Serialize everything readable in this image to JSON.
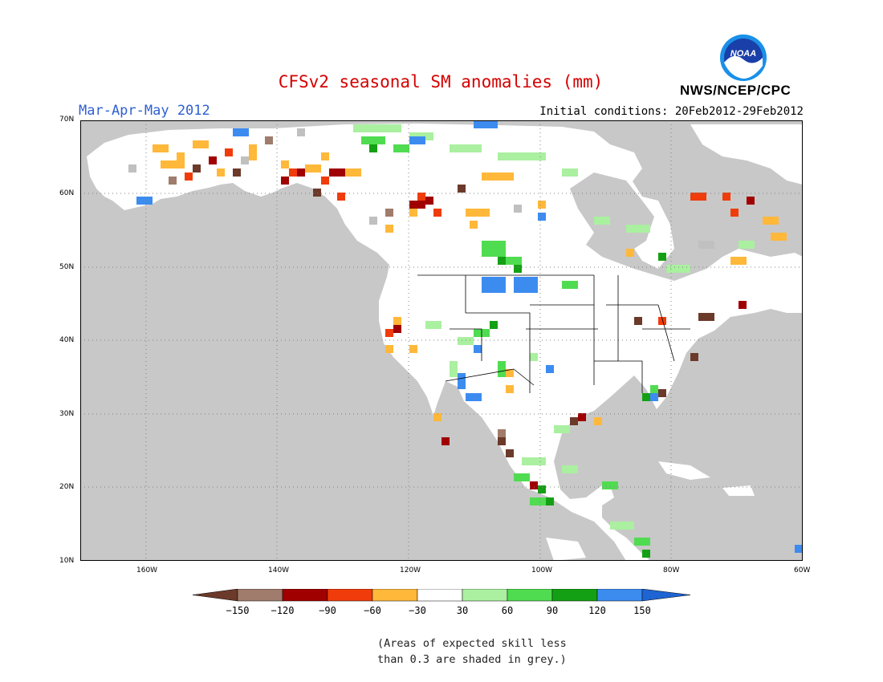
{
  "title": "CFSv2 seasonal SM anomalies (mm)",
  "period": "Mar-Apr-May 2012",
  "initial_conditions": "Initial conditions: 20Feb2012-29Feb2012",
  "agency": "NWS/NCEP/CPC",
  "logo_text": "NOAA",
  "axes": {
    "lat_labels": [
      "70N",
      "60N",
      "50N",
      "40N",
      "30N",
      "20N",
      "10N"
    ],
    "lon_labels": [
      "160W",
      "140W",
      "120W",
      "100W",
      "80W",
      "60W"
    ],
    "lat_range": [
      10,
      70
    ],
    "lon_range": [
      -170,
      -60
    ],
    "grid": "dotted"
  },
  "colorbar": {
    "labels": [
      "-150",
      "-120",
      "-90",
      "-60",
      "-30",
      "30",
      "60",
      "90",
      "120",
      "150"
    ],
    "colors": [
      "#6b3a2a",
      "#a07c6c",
      "#a00000",
      "#f03c0a",
      "#ffb83a",
      "#ffffff",
      "#aaf0a0",
      "#50dc50",
      "#14a014",
      "#3c8cf0",
      "#1e64d2"
    ]
  },
  "colors": {
    "ocean": "#c8c8c8",
    "land": "#ffffff",
    "low_skill": "#c0c0c0",
    "title": "#d40000",
    "period": "#2f5fd0"
  },
  "footnote": {
    "line1": "(Areas of expected skill less",
    "line2": "than 0.3 are shaded in grey.)"
  }
}
